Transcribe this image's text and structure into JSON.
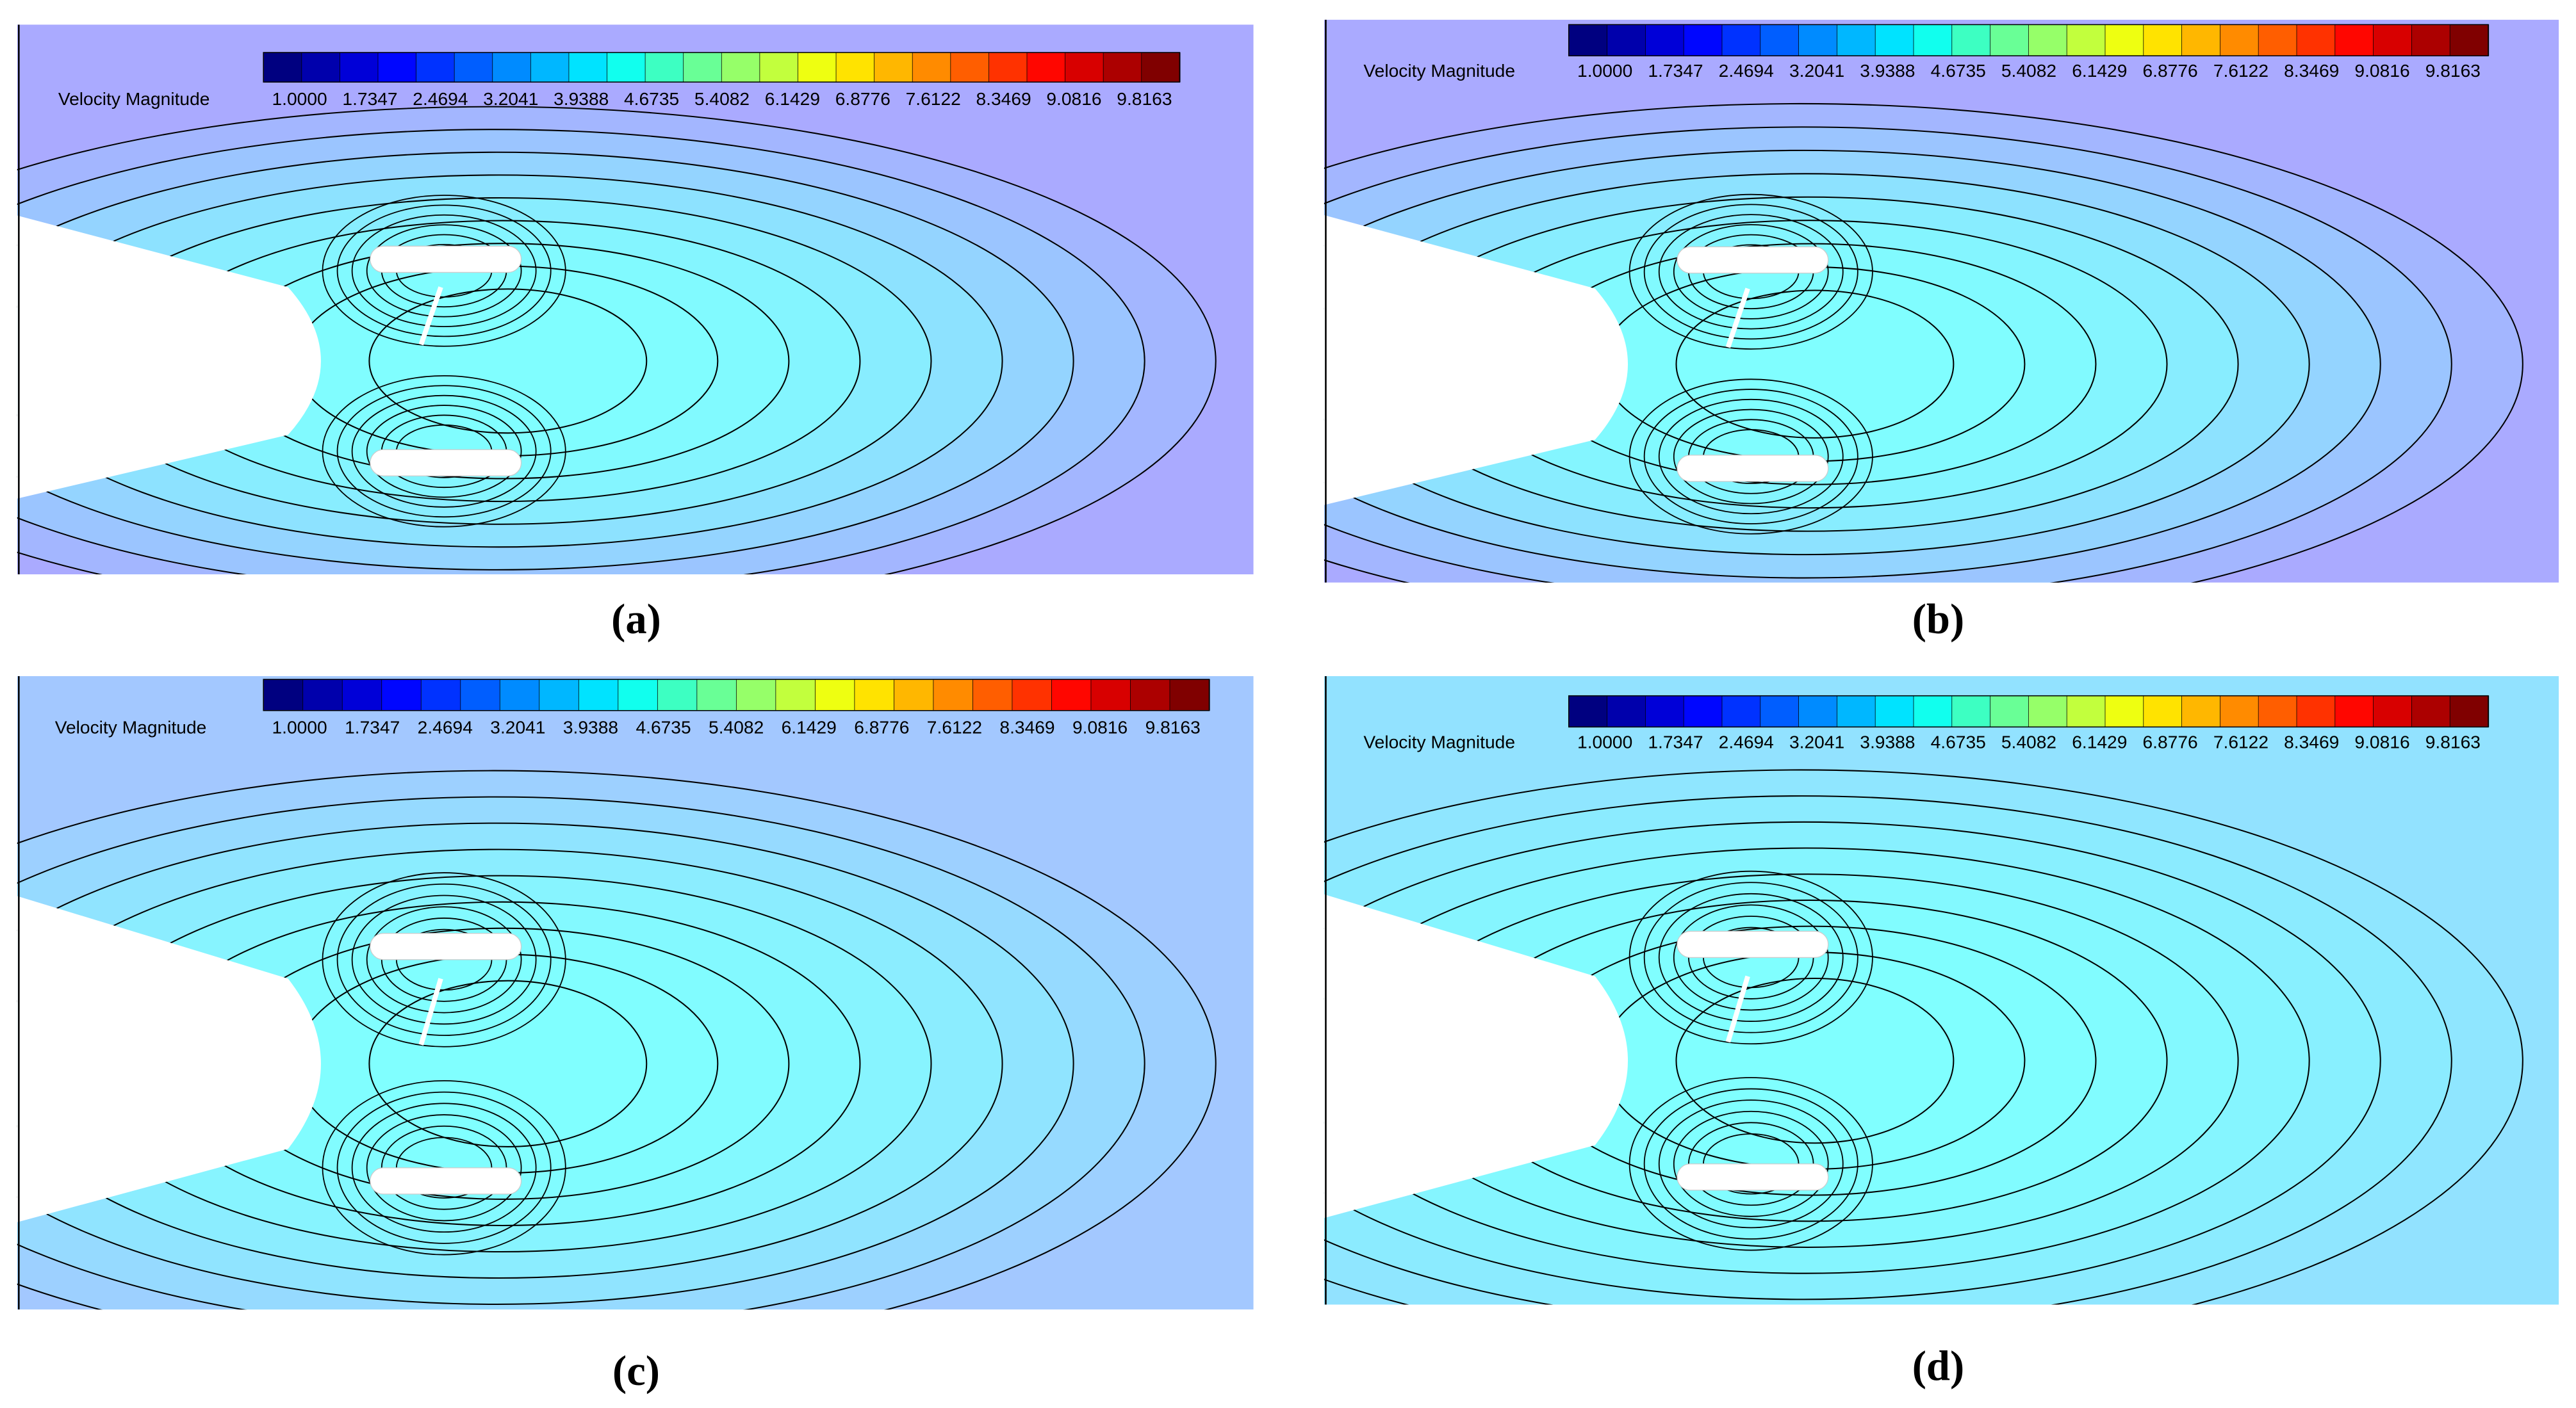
{
  "panels": [
    {
      "label": "(a)",
      "legend": {
        "title": "Velocity Magnitude",
        "ticks": [
          "1.0000",
          "1.7347",
          "2.4694",
          "3.2041",
          "3.9388",
          "4.6735",
          "5.4082",
          "6.1429",
          "6.8776",
          "7.6122",
          "8.3469",
          "9.0816",
          "9.8163"
        ]
      }
    },
    {
      "label": "(b)",
      "legend": {
        "title": "Velocity Magnitude",
        "ticks": [
          "1.0000",
          "1.7347",
          "2.4694",
          "3.2041",
          "3.9388",
          "4.6735",
          "5.4082",
          "6.1429",
          "6.8776",
          "7.6122",
          "8.3469",
          "9.0816",
          "9.8163"
        ]
      }
    },
    {
      "label": "(c)",
      "legend": {
        "title": "Velocity Magnitude",
        "ticks": [
          "1.0000",
          "1.7347",
          "2.4694",
          "3.2041",
          "3.9388",
          "4.6735",
          "5.4082",
          "6.1429",
          "6.8776",
          "7.6122",
          "8.3469",
          "9.0816",
          "9.8163"
        ]
      }
    },
    {
      "label": "(d)",
      "legend": {
        "title": "Velocity Magnitude",
        "ticks": [
          "1.0000",
          "1.7347",
          "2.4694",
          "3.2041",
          "3.9388",
          "4.6735",
          "5.4082",
          "6.1429",
          "6.8776",
          "7.6122",
          "8.3469",
          "9.0816",
          "9.8163"
        ]
      }
    }
  ]
}
